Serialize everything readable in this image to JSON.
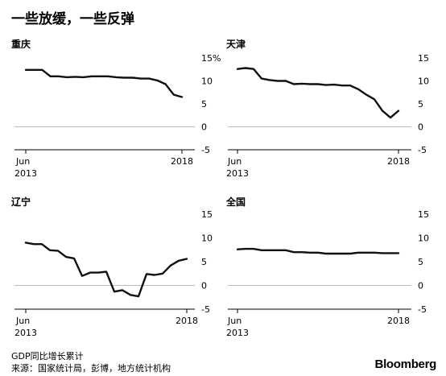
{
  "title": "一些放缓，一些反弹",
  "footer": {
    "note": "GDP同比增长累计",
    "source": "来源：国家统计局，彭博，地方统计机构",
    "brand": "Bloomberg"
  },
  "style": {
    "line_color": "#111111",
    "axis_color": "#000000",
    "zero_line_color": "#bbbbbb"
  },
  "chart_data": [
    {
      "type": "line",
      "title": "重庆",
      "x_start_label": [
        "Jun",
        "2013"
      ],
      "x_end_label": "2018",
      "yticks": [
        15,
        10,
        5,
        0,
        -5
      ],
      "ytick_labels": [
        "15%",
        "10",
        "5",
        "0",
        "-5"
      ],
      "ylim": [
        -5,
        15
      ],
      "series": [
        {
          "values": [
            12.4,
            12.4,
            12.4,
            11.0,
            11.0,
            10.8,
            10.9,
            10.8,
            11.0,
            11.0,
            11.0,
            10.8,
            10.7,
            10.7,
            10.5,
            10.5,
            10.1,
            9.3,
            7.0,
            6.5
          ]
        }
      ]
    },
    {
      "type": "line",
      "title": "天津",
      "x_start_label": [
        "Jun",
        "2013"
      ],
      "x_end_label": "2018",
      "yticks": [
        15,
        10,
        5,
        0,
        -5
      ],
      "ytick_labels": [
        "15",
        "10",
        "5",
        "0",
        "-5"
      ],
      "ylim": [
        -5,
        15
      ],
      "series": [
        {
          "values": [
            12.6,
            12.8,
            12.6,
            10.5,
            10.2,
            10.0,
            10.0,
            9.3,
            9.4,
            9.3,
            9.3,
            9.1,
            9.2,
            9.0,
            9.0,
            8.2,
            7.0,
            6.0,
            3.5,
            2.0,
            3.5
          ]
        }
      ]
    },
    {
      "type": "line",
      "title": "辽宁",
      "x_start_label": [
        "Jun",
        "2013"
      ],
      "x_end_label": "2018",
      "yticks": [
        15,
        10,
        5,
        0,
        -5
      ],
      "ytick_labels": [
        "15",
        "10",
        "5",
        "0",
        "-5"
      ],
      "ylim": [
        -5,
        15
      ],
      "series": [
        {
          "values": [
            9.0,
            8.7,
            8.7,
            7.4,
            7.3,
            6.0,
            5.7,
            2.0,
            2.7,
            2.7,
            2.9,
            -1.3,
            -1.0,
            -2.0,
            -2.3,
            2.4,
            2.2,
            2.5,
            4.2,
            5.2,
            5.6
          ]
        }
      ]
    },
    {
      "type": "line",
      "title": "全国",
      "x_start_label": [
        "Jun",
        "2013"
      ],
      "x_end_label": "2018",
      "yticks": [
        15,
        10,
        5,
        0,
        -5
      ],
      "ytick_labels": [
        "15",
        "10",
        "5",
        "0",
        "-5"
      ],
      "ylim": [
        -5,
        15
      ],
      "series": [
        {
          "values": [
            7.6,
            7.7,
            7.7,
            7.4,
            7.4,
            7.4,
            7.4,
            7.0,
            7.0,
            6.9,
            6.9,
            6.7,
            6.7,
            6.7,
            6.7,
            6.9,
            6.9,
            6.9,
            6.8,
            6.8,
            6.8
          ]
        }
      ]
    }
  ]
}
